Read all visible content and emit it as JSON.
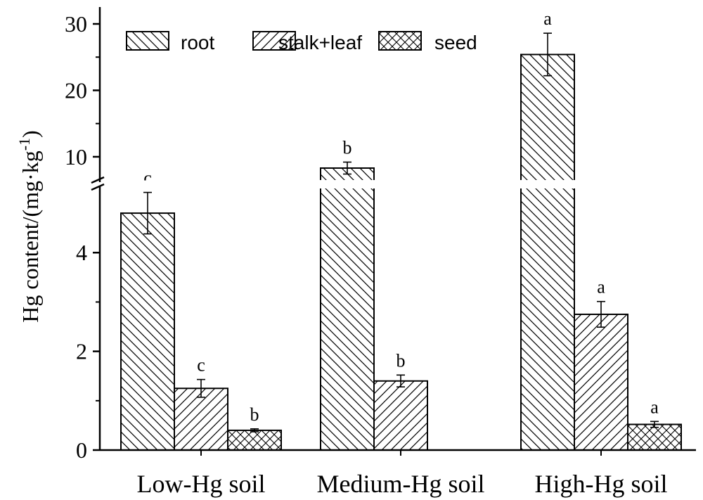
{
  "chart_data": {
    "type": "bar",
    "ylabel_text": "Hg content/(mg·kg",
    "ylabel_sup": "-1",
    "ylabel_close": ")",
    "categories": [
      "Low-Hg soil",
      "Medium-Hg soil",
      "High-Hg soil"
    ],
    "series": [
      {
        "name": "root",
        "pattern": "backslash",
        "values": [
          4.8,
          8.3,
          25.4
        ],
        "errors": [
          0.42,
          0.9,
          3.2
        ],
        "letters": [
          "c",
          "b",
          "a"
        ]
      },
      {
        "name": "stalk+leaf",
        "pattern": "slash",
        "values": [
          1.25,
          1.4,
          2.75
        ],
        "errors": [
          0.18,
          0.12,
          0.26
        ],
        "letters": [
          "c",
          "b",
          "a"
        ]
      },
      {
        "name": "seed",
        "pattern": "cross",
        "values": [
          0.4,
          null,
          0.52
        ],
        "errors": [
          0.03,
          null,
          0.06
        ],
        "letters": [
          "b",
          "",
          "a"
        ]
      }
    ],
    "axis": {
      "broken": true,
      "lower_range": [
        0,
        5.3
      ],
      "upper_range": [
        6.5,
        31
      ],
      "lower_ticks": [
        0,
        2,
        4
      ],
      "upper_ticks": [
        10,
        20,
        30
      ]
    },
    "legend": {
      "placement": "top-left",
      "entries": [
        "root",
        "stalk+leaf",
        "seed"
      ]
    },
    "grid": false
  }
}
